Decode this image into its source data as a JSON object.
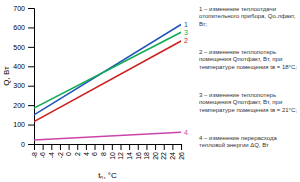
{
  "chart_data": {
    "type": "line",
    "xlabel": "tₙ, °C",
    "ylabel": "Q, Вт",
    "x": [
      -8,
      26
    ],
    "series": [
      {
        "name": "1",
        "color": "#2255bb",
        "values": [
          150,
          615
        ]
      },
      {
        "name": "3",
        "color": "#11aa55",
        "values": [
          185,
          575
        ]
      },
      {
        "name": "2",
        "color": "#cc2222",
        "values": [
          115,
          530
        ]
      },
      {
        "name": "4",
        "color": "#cc44aa",
        "values": [
          20,
          60
        ]
      }
    ],
    "xlim": [
      -8,
      26
    ],
    "xticks": [
      -8,
      -6,
      -4,
      -2,
      0,
      2,
      4,
      6,
      8,
      10,
      12,
      14,
      16,
      18,
      20,
      22,
      24,
      26
    ],
    "ylim": [
      0,
      700
    ],
    "yticks": [
      0,
      100,
      200,
      300,
      400,
      500,
      600,
      700
    ],
    "grid": false,
    "annotations": [
      "1 – изменение теплоотдачи\nотопительного прибора, Qo.лфакт,\nВт;",
      "2 – изменение теплопотерь\nпомещения Qпотфакт, Вт, при\nтемпературе помещения tв = 18°C;",
      "3 – изменение теплопотерь\nпомещения Qпотфакт, Вт, при\nтемпературе помещения tв = 21°C;",
      "4 – изменение перерасхода\nтепловой энергии ΔQ, Вт"
    ]
  }
}
